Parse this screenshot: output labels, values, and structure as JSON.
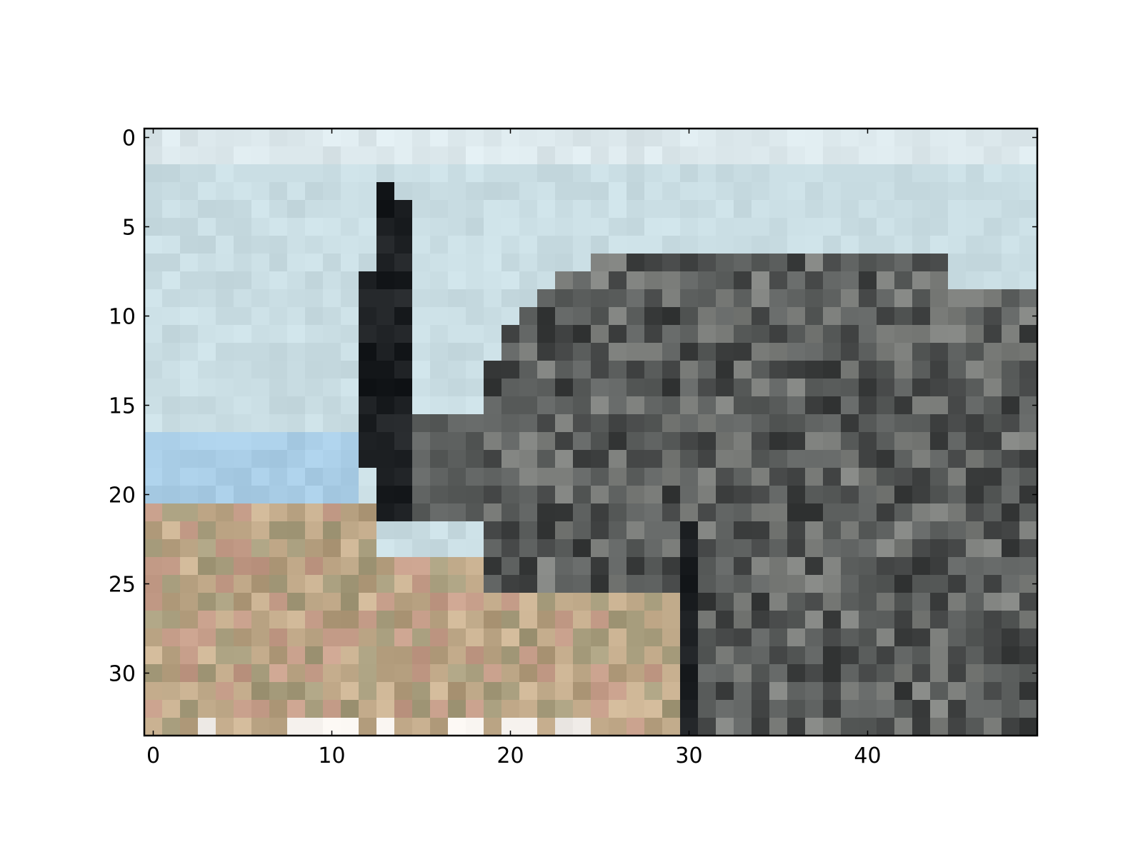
{
  "chart_data": {
    "type": "heatmap",
    "title": "",
    "xlabel": "",
    "ylabel": "",
    "image": {
      "columns": 50,
      "rows": 34,
      "description_of_content": "pixelated color image (imshow) of a grey elephant against a pale blue sky over tan grassland"
    },
    "xlim": [
      -0.5,
      49.5
    ],
    "ylim": [
      33.5,
      -0.5
    ],
    "x_ticks": [
      0,
      10,
      20,
      30,
      40
    ],
    "x_tick_labels": [
      "0",
      "10",
      "20",
      "30",
      "40"
    ],
    "y_ticks": [
      0,
      5,
      10,
      15,
      20,
      25,
      30
    ],
    "y_tick_labels": [
      "0",
      "5",
      "10",
      "15",
      "20",
      "25",
      "30"
    ],
    "grid": false,
    "legend": "none",
    "colors": {
      "sky": "#c9dde3",
      "sky_light": "#dce8ec",
      "sky_blue": "#a9cde6",
      "elephant_dark": "#3d3f3f",
      "elephant_mid": "#5d605f",
      "elephant_light": "#7d7f7c",
      "trunk_black": "#1c1f22",
      "ground_tan": "#b49e7e",
      "ground_light": "#c8b090",
      "ground_olive": "#a69c7c",
      "ground_pink": "#c49c88",
      "white_patch": "#f6f2ee"
    }
  }
}
